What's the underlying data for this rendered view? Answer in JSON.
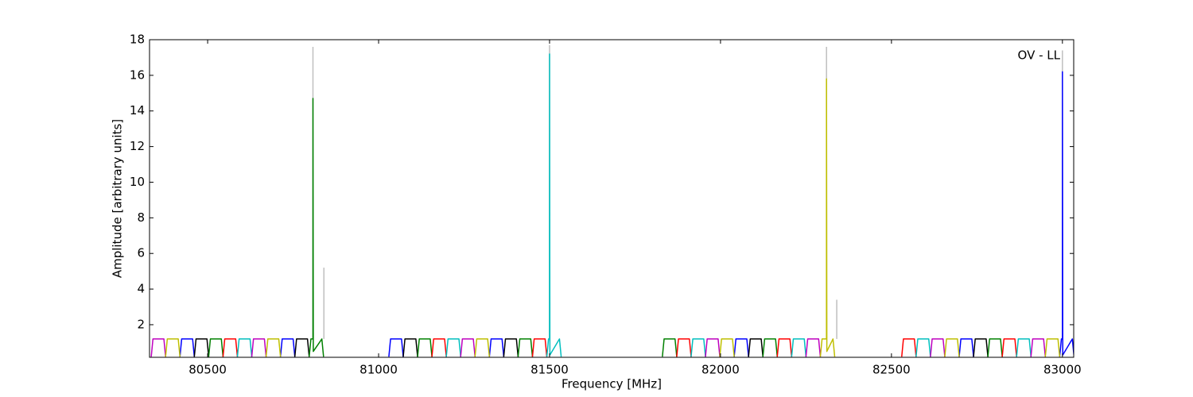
{
  "chart_data": {
    "type": "line",
    "annotation": "OV - LL",
    "xlabel": "Frequency [MHz]",
    "ylabel": "Amplitude [arbitrary units]",
    "xlim": [
      80330,
      83033
    ],
    "ylim": [
      0.17,
      18
    ],
    "xticks": [
      80500,
      81000,
      81500,
      82000,
      82500,
      83000
    ],
    "yticks": [
      2,
      4,
      6,
      8,
      10,
      12,
      14,
      16,
      18
    ],
    "series": [
      {
        "color": "#bfbfbf",
        "x": [
          80808,
          80808,
          null,
          80840,
          80840,
          null,
          81500,
          81500,
          null,
          82310,
          82310,
          null,
          82340,
          82340,
          null,
          83000,
          83000
        ],
        "values": [
          1.2,
          17.6,
          null,
          1.2,
          5.2,
          null,
          1.2,
          17.7,
          null,
          1.2,
          17.6,
          null,
          1.2,
          3.4,
          null,
          1.2,
          17.4
        ]
      },
      {
        "color": "#0000ff",
        "x": [
          80419,
          80424,
          80456,
          80461,
          null,
          80713,
          80718,
          80750,
          80755,
          null,
          81030,
          81035,
          81067,
          81072,
          null,
          81324,
          81329,
          81361,
          81366,
          null,
          82040,
          82045,
          82077,
          82082,
          null,
          82698,
          82703,
          82735,
          82740,
          null,
          82992,
          82997,
          83000,
          83000,
          83001,
          83029,
          83034
        ],
        "values": [
          0.2,
          1.2,
          1.2,
          0.2,
          null,
          0.2,
          1.2,
          1.2,
          0.2,
          null,
          0.2,
          1.2,
          1.2,
          0.2,
          null,
          0.2,
          1.2,
          1.2,
          0.2,
          null,
          0.2,
          1.2,
          1.2,
          0.2,
          null,
          0.2,
          1.2,
          1.2,
          0.2,
          null,
          0.2,
          1.2,
          1.2,
          16.2,
          0.3,
          1.2,
          0.2
        ]
      },
      {
        "color": "#000000",
        "x": [
          80461,
          80466,
          80498,
          80503,
          null,
          80755,
          80760,
          80792,
          80797,
          null,
          81072,
          81077,
          81109,
          81114,
          null,
          81366,
          81371,
          81403,
          81408,
          null,
          82082,
          82087,
          82119,
          82124,
          null,
          82740,
          82745,
          82777,
          82782
        ],
        "values": [
          0.2,
          1.2,
          1.2,
          0.2,
          null,
          0.2,
          1.2,
          1.2,
          0.2,
          null,
          0.2,
          1.2,
          1.2,
          0.2,
          null,
          0.2,
          1.2,
          1.2,
          0.2,
          null,
          0.2,
          1.2,
          1.2,
          0.2,
          null,
          0.2,
          1.2,
          1.2,
          0.2
        ]
      },
      {
        "color": "#008000",
        "x": [
          80503,
          80508,
          80540,
          80545,
          null,
          80797,
          80802,
          80808,
          80808,
          80809,
          80834,
          80839,
          null,
          81114,
          81119,
          81151,
          81156,
          null,
          81408,
          81413,
          81445,
          81450,
          null,
          81830,
          81835,
          81867,
          81872,
          null,
          82124,
          82129,
          82161,
          82166,
          null,
          82782,
          82787,
          82819,
          82824
        ],
        "values": [
          0.2,
          1.2,
          1.2,
          0.2,
          null,
          0.2,
          1.2,
          1.2,
          14.7,
          0.5,
          1.2,
          0.2,
          null,
          0.2,
          1.2,
          1.2,
          0.2,
          null,
          0.2,
          1.2,
          1.2,
          0.2,
          null,
          0.2,
          1.2,
          1.2,
          0.2,
          null,
          0.2,
          1.2,
          1.2,
          0.2,
          null,
          0.2,
          1.2,
          1.2,
          0.2
        ]
      },
      {
        "color": "#ff0000",
        "x": [
          80545,
          80550,
          80582,
          80587,
          null,
          81156,
          81161,
          81193,
          81198,
          null,
          81450,
          81455,
          81487,
          81492,
          null,
          81872,
          81877,
          81909,
          81914,
          null,
          82166,
          82171,
          82203,
          82208,
          null,
          82530,
          82535,
          82567,
          82572,
          null,
          82824,
          82829,
          82861,
          82866
        ],
        "values": [
          0.2,
          1.2,
          1.2,
          0.2,
          null,
          0.2,
          1.2,
          1.2,
          0.2,
          null,
          0.2,
          1.2,
          1.2,
          0.2,
          null,
          0.2,
          1.2,
          1.2,
          0.2,
          null,
          0.2,
          1.2,
          1.2,
          0.2,
          null,
          0.2,
          1.2,
          1.2,
          0.2,
          null,
          0.2,
          1.2,
          1.2,
          0.2
        ]
      },
      {
        "color": "#00bfbf",
        "x": [
          80587,
          80592,
          80624,
          80629,
          null,
          81198,
          81203,
          81235,
          81240,
          null,
          81492,
          81497,
          81500,
          81500,
          81501,
          81529,
          81534,
          null,
          81914,
          81919,
          81951,
          81956,
          null,
          82208,
          82213,
          82245,
          82250,
          null,
          82572,
          82577,
          82609,
          82614,
          null,
          82866,
          82871,
          82903,
          82908
        ],
        "values": [
          0.2,
          1.2,
          1.2,
          0.2,
          null,
          0.2,
          1.2,
          1.2,
          0.2,
          null,
          0.2,
          1.2,
          1.2,
          17.2,
          0.3,
          1.2,
          0.2,
          null,
          0.2,
          1.2,
          1.2,
          0.2,
          null,
          0.2,
          1.2,
          1.2,
          0.2,
          null,
          0.2,
          1.2,
          1.2,
          0.2,
          null,
          0.2,
          1.2,
          1.2,
          0.2
        ]
      },
      {
        "color": "#bf00bf",
        "x": [
          80335,
          80340,
          80372,
          80377,
          null,
          80629,
          80634,
          80666,
          80671,
          null,
          81240,
          81245,
          81277,
          81282,
          null,
          81956,
          81961,
          81993,
          81998,
          null,
          82250,
          82255,
          82287,
          82292,
          null,
          82614,
          82619,
          82651,
          82656,
          null,
          82908,
          82913,
          82945,
          82950
        ],
        "values": [
          0.2,
          1.2,
          1.2,
          0.2,
          null,
          0.2,
          1.2,
          1.2,
          0.2,
          null,
          0.2,
          1.2,
          1.2,
          0.2,
          null,
          0.2,
          1.2,
          1.2,
          0.2,
          null,
          0.2,
          1.2,
          1.2,
          0.2,
          null,
          0.2,
          1.2,
          1.2,
          0.2,
          null,
          0.2,
          1.2,
          1.2,
          0.2
        ]
      },
      {
        "color": "#bfbf00",
        "x": [
          80377,
          80382,
          80414,
          80419,
          null,
          80671,
          80676,
          80708,
          80713,
          null,
          81282,
          81287,
          81319,
          81324,
          null,
          81998,
          82003,
          82035,
          82040,
          null,
          82292,
          82297,
          82310,
          82310,
          82311,
          82329,
          82334,
          null,
          82656,
          82661,
          82693,
          82698,
          null,
          82950,
          82955,
          82987,
          82992
        ],
        "values": [
          0.2,
          1.2,
          1.2,
          0.2,
          null,
          0.2,
          1.2,
          1.2,
          0.2,
          null,
          0.2,
          1.2,
          1.2,
          0.2,
          null,
          0.2,
          1.2,
          1.2,
          0.2,
          null,
          0.2,
          1.2,
          1.2,
          15.8,
          0.5,
          1.2,
          0.2,
          null,
          0.2,
          1.2,
          1.2,
          0.2,
          null,
          0.2,
          1.2,
          1.2,
          0.2
        ]
      }
    ]
  }
}
